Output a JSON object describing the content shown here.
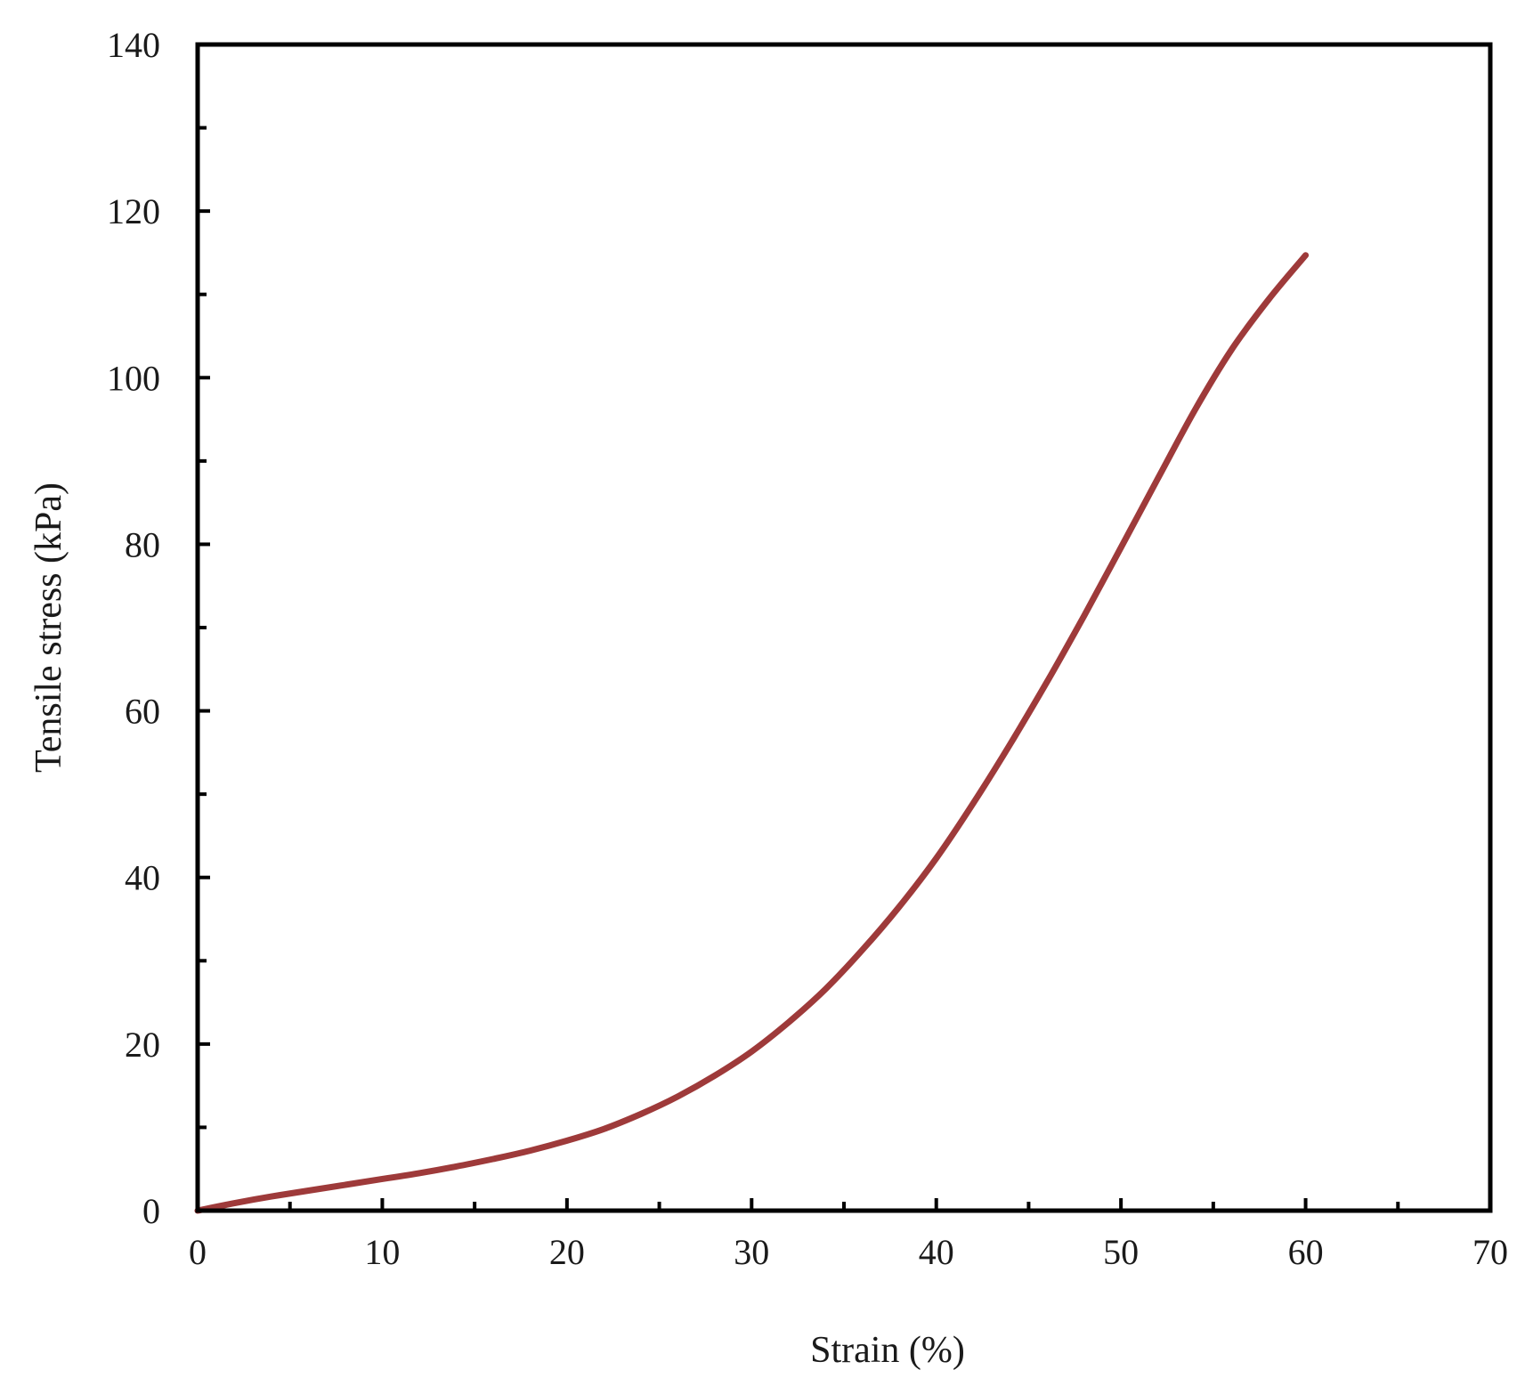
{
  "chart_data": {
    "type": "line",
    "title": "",
    "xlabel": "Strain (%)",
    "ylabel": "Tensile stress (kPa)",
    "xlim": [
      0,
      70
    ],
    "ylim": [
      0,
      140
    ],
    "xticks": [
      0,
      10,
      20,
      30,
      40,
      50,
      60,
      70
    ],
    "yticks": [
      0,
      20,
      40,
      60,
      80,
      100,
      120,
      140
    ],
    "x_minor_step": 5,
    "y_minor_step": 10,
    "grid": false,
    "legend": "none",
    "series": [
      {
        "color": "#9e3a3a",
        "x": [
          0,
          2,
          4,
          6,
          8,
          10,
          12,
          14,
          16,
          18,
          20,
          22,
          24,
          26,
          28,
          30,
          32,
          34,
          36,
          38,
          40,
          42,
          44,
          46,
          48,
          50,
          52,
          54,
          56,
          58,
          60
        ],
        "y": [
          0,
          0.9,
          1.7,
          2.4,
          3.1,
          3.8,
          4.5,
          5.3,
          6.2,
          7.2,
          8.4,
          9.8,
          11.6,
          13.7,
          16.2,
          19.1,
          22.6,
          26.6,
          31.3,
          36.5,
          42.3,
          48.9,
          56.0,
          63.5,
          71.4,
          79.6,
          87.9,
          96.1,
          103.4,
          109.4,
          114.7
        ]
      }
    ]
  }
}
